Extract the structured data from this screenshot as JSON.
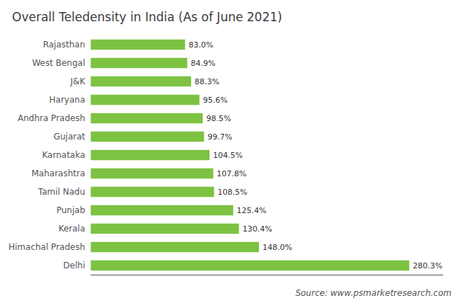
{
  "chart_data": {
    "type": "bar",
    "orientation": "horizontal",
    "title": "Overall Teledensity in India (As of June 2021)",
    "categories": [
      "Rajasthan",
      "West Bengal",
      "J&K",
      "Haryana",
      "Andhra Pradesh",
      "Gujarat",
      "Karnataka",
      "Maharashtra",
      "Tamil Nadu",
      "Punjab",
      "Kerala",
      "Himachal Pradesh",
      "Delhi"
    ],
    "values": [
      83.0,
      84.9,
      88.3,
      95.6,
      98.5,
      99.7,
      104.5,
      107.8,
      108.5,
      125.4,
      130.4,
      148.0,
      280.3
    ],
    "value_labels": [
      "83.0%",
      "84.9%",
      "88.3%",
      "95.6%",
      "98.5%",
      "99.7%",
      "104.5%",
      "107.8%",
      "108.5%",
      "125.4%",
      "130.4%",
      "148.0%",
      "280.3%"
    ],
    "data_labels": true,
    "color": "#7dc242",
    "xlim": [
      0,
      310
    ],
    "tick_labels": "y",
    "grid": false,
    "annotations": [
      "Source: www.psmarketresearch.com"
    ]
  }
}
